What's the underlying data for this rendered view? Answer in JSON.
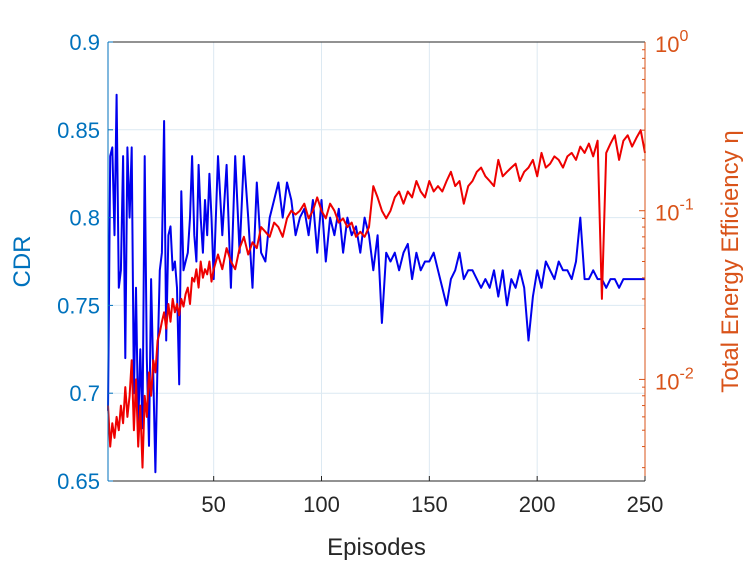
{
  "chart_data": {
    "type": "line",
    "xlabel": "Episodes",
    "ylabel_left": "CDR",
    "ylabel_right": "Total Energy Efficiency η",
    "xlim": [
      1,
      250
    ],
    "ylim_left": [
      0.65,
      0.9
    ],
    "ylim_right": [
      0.0025,
      1
    ],
    "right_axis_scale": "log",
    "grid": true,
    "x_ticks": [
      50,
      100,
      150,
      200,
      250
    ],
    "x_tick_labels": [
      "50",
      "100",
      "150",
      "200",
      "250"
    ],
    "y_left_ticks": [
      0.65,
      0.7,
      0.75,
      0.8,
      0.85,
      0.9
    ],
    "y_left_tick_labels": [
      "0.65",
      "0.7",
      "0.75",
      "0.8",
      "0.85",
      "0.9"
    ],
    "y_right_ticks": [
      0.01,
      0.1,
      1
    ],
    "y_right_tick_labels": [
      {
        "base": "10",
        "exp": "-2"
      },
      {
        "base": "10",
        "exp": "-1"
      },
      {
        "base": "10",
        "exp": "0"
      }
    ],
    "colors": {
      "left_axis": "#0072BD",
      "right_axis": "#D95319",
      "cdr_line": "#0000EE",
      "eta_line": "#EE0000",
      "grid": "#DCE9F2"
    },
    "series": [
      {
        "axis": "left",
        "color": "#0000EE",
        "x": [
          1,
          2,
          3,
          4,
          5,
          6,
          7,
          8,
          9,
          10,
          11,
          12,
          13,
          14,
          15,
          16,
          17,
          18,
          19,
          20,
          21,
          22,
          23,
          24,
          25,
          26,
          27,
          28,
          29,
          30,
          31,
          32,
          33,
          34,
          35,
          36,
          37,
          38,
          39,
          40,
          41,
          42,
          43,
          44,
          45,
          46,
          47,
          48,
          49,
          50,
          52,
          54,
          56,
          58,
          60,
          62,
          64,
          66,
          68,
          70,
          72,
          74,
          76,
          78,
          80,
          82,
          84,
          86,
          88,
          90,
          92,
          94,
          96,
          98,
          100,
          102,
          104,
          106,
          108,
          110,
          112,
          114,
          116,
          118,
          120,
          122,
          124,
          126,
          128,
          130,
          132,
          134,
          136,
          138,
          140,
          142,
          144,
          146,
          148,
          150,
          152,
          154,
          156,
          158,
          160,
          162,
          164,
          166,
          168,
          170,
          172,
          174,
          176,
          178,
          180,
          182,
          184,
          186,
          188,
          190,
          192,
          194,
          196,
          198,
          200,
          202,
          204,
          206,
          208,
          210,
          212,
          214,
          216,
          218,
          220,
          222,
          224,
          226,
          228,
          230,
          232,
          234,
          236,
          238,
          240,
          242,
          244,
          246,
          248,
          250
        ],
        "values": [
          0.69,
          0.835,
          0.84,
          0.79,
          0.87,
          0.76,
          0.77,
          0.835,
          0.72,
          0.84,
          0.8,
          0.84,
          0.7,
          0.76,
          0.68,
          0.725,
          0.68,
          0.835,
          0.72,
          0.67,
          0.765,
          0.71,
          0.655,
          0.72,
          0.77,
          0.78,
          0.855,
          0.73,
          0.79,
          0.795,
          0.77,
          0.775,
          0.76,
          0.705,
          0.815,
          0.77,
          0.775,
          0.78,
          0.8,
          0.835,
          0.79,
          0.775,
          0.83,
          0.8,
          0.78,
          0.81,
          0.79,
          0.825,
          0.8,
          0.765,
          0.835,
          0.79,
          0.83,
          0.76,
          0.835,
          0.78,
          0.835,
          0.8,
          0.76,
          0.82,
          0.78,
          0.775,
          0.8,
          0.81,
          0.82,
          0.8,
          0.82,
          0.81,
          0.79,
          0.8,
          0.805,
          0.79,
          0.81,
          0.78,
          0.81,
          0.775,
          0.8,
          0.79,
          0.805,
          0.78,
          0.8,
          0.79,
          0.795,
          0.78,
          0.8,
          0.79,
          0.77,
          0.79,
          0.74,
          0.78,
          0.775,
          0.78,
          0.77,
          0.78,
          0.785,
          0.765,
          0.78,
          0.77,
          0.775,
          0.775,
          0.78,
          0.77,
          0.76,
          0.75,
          0.765,
          0.77,
          0.78,
          0.765,
          0.77,
          0.77,
          0.765,
          0.76,
          0.765,
          0.76,
          0.77,
          0.755,
          0.77,
          0.75,
          0.765,
          0.76,
          0.77,
          0.76,
          0.73,
          0.755,
          0.77,
          0.76,
          0.775,
          0.77,
          0.765,
          0.775,
          0.77,
          0.77,
          0.765,
          0.775,
          0.8,
          0.765,
          0.765,
          0.77,
          0.765,
          0.765,
          0.76,
          0.765,
          0.765,
          0.76,
          0.765,
          0.765,
          0.765,
          0.765,
          0.765,
          0.765
        ]
      },
      {
        "axis": "right",
        "color": "#EE0000",
        "x": [
          1,
          2,
          3,
          4,
          5,
          6,
          7,
          8,
          9,
          10,
          11,
          12,
          13,
          14,
          15,
          16,
          17,
          18,
          19,
          20,
          21,
          22,
          23,
          24,
          25,
          26,
          27,
          28,
          29,
          30,
          31,
          32,
          33,
          34,
          35,
          36,
          37,
          38,
          39,
          40,
          41,
          42,
          43,
          44,
          45,
          46,
          47,
          48,
          49,
          50,
          52,
          54,
          56,
          58,
          60,
          62,
          64,
          66,
          68,
          70,
          72,
          74,
          76,
          78,
          80,
          82,
          84,
          86,
          88,
          90,
          92,
          94,
          96,
          98,
          100,
          102,
          104,
          106,
          108,
          110,
          112,
          114,
          116,
          118,
          120,
          122,
          124,
          126,
          128,
          130,
          132,
          134,
          136,
          138,
          140,
          142,
          144,
          146,
          148,
          150,
          152,
          154,
          156,
          158,
          160,
          162,
          164,
          166,
          168,
          170,
          172,
          174,
          176,
          178,
          180,
          182,
          184,
          186,
          188,
          190,
          192,
          194,
          196,
          198,
          200,
          202,
          204,
          206,
          208,
          210,
          212,
          214,
          216,
          218,
          220,
          222,
          224,
          226,
          228,
          230,
          232,
          234,
          236,
          238,
          240,
          242,
          244,
          246,
          248,
          250
        ],
        "values": [
          0.007,
          0.004,
          0.0055,
          0.0045,
          0.006,
          0.005,
          0.007,
          0.0055,
          0.009,
          0.006,
          0.008,
          0.013,
          0.005,
          0.01,
          0.004,
          0.007,
          0.003,
          0.008,
          0.006,
          0.011,
          0.008,
          0.013,
          0.011,
          0.017,
          0.019,
          0.022,
          0.025,
          0.02,
          0.028,
          0.022,
          0.03,
          0.025,
          0.028,
          0.024,
          0.03,
          0.027,
          0.032,
          0.035,
          0.028,
          0.04,
          0.038,
          0.045,
          0.035,
          0.05,
          0.04,
          0.045,
          0.042,
          0.05,
          0.038,
          0.045,
          0.055,
          0.045,
          0.06,
          0.05,
          0.045,
          0.06,
          0.07,
          0.055,
          0.065,
          0.06,
          0.08,
          0.075,
          0.07,
          0.085,
          0.08,
          0.07,
          0.09,
          0.1,
          0.095,
          0.1,
          0.11,
          0.09,
          0.1,
          0.12,
          0.1,
          0.09,
          0.11,
          0.1,
          0.085,
          0.09,
          0.08,
          0.085,
          0.07,
          0.075,
          0.07,
          0.08,
          0.14,
          0.12,
          0.1,
          0.09,
          0.1,
          0.12,
          0.13,
          0.11,
          0.13,
          0.12,
          0.15,
          0.13,
          0.12,
          0.15,
          0.13,
          0.14,
          0.13,
          0.15,
          0.17,
          0.14,
          0.15,
          0.11,
          0.14,
          0.15,
          0.17,
          0.18,
          0.16,
          0.15,
          0.14,
          0.2,
          0.16,
          0.17,
          0.18,
          0.19,
          0.15,
          0.17,
          0.18,
          0.2,
          0.16,
          0.22,
          0.18,
          0.19,
          0.21,
          0.2,
          0.18,
          0.21,
          0.22,
          0.2,
          0.24,
          0.22,
          0.25,
          0.21,
          0.26,
          0.03,
          0.22,
          0.25,
          0.28,
          0.2,
          0.26,
          0.28,
          0.24,
          0.27,
          0.3,
          0.22
        ]
      }
    ]
  }
}
